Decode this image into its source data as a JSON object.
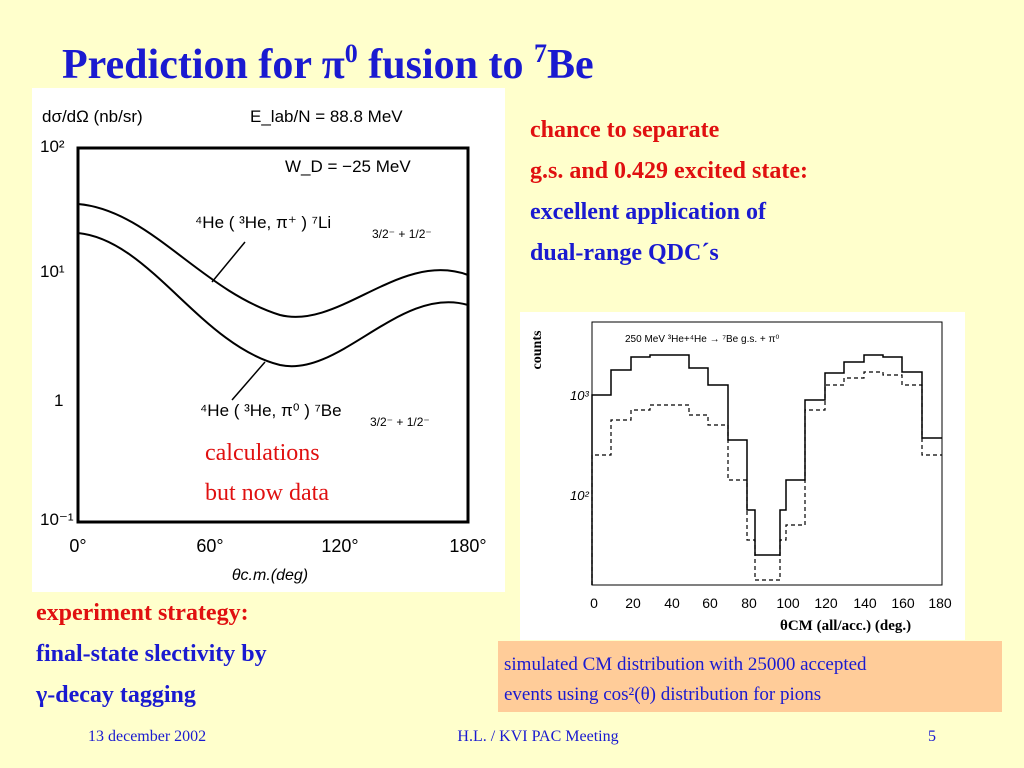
{
  "title": {
    "text": "Prediction for π",
    "sup0": "0",
    "mid": " fusion to ",
    "sup7": "7",
    "end": "Be"
  },
  "left_plot": {
    "ylabel": "dσ/dΩ  (nb/sr)",
    "energy": "E_lab/N = 88.8 MeV",
    "wd": "W_D = −25  MeV",
    "yticks": [
      "10²",
      "10¹",
      "1",
      "10⁻¹"
    ],
    "xticks": [
      "0°",
      "60°",
      "120°",
      "180°"
    ],
    "xlabel": "θc.m.(deg)",
    "curve_upper": "⁴He ( ³He, π⁺ ) ⁷Li",
    "curve_upper_sub": "3/2⁻ + 1/2⁻",
    "curve_lower": "⁴He ( ³He, π⁰ ) ⁷Be",
    "curve_lower_sub": "3/2⁻ + 1/2⁻"
  },
  "overlay": [
    "calculations",
    "but now data"
  ],
  "right_text": {
    "red": [
      "chance to separate",
      "g.s. and 0.429 excited state:"
    ],
    "blue": [
      "excellent application of",
      "dual-range QDC´s"
    ]
  },
  "right_plot": {
    "ylabel": "counts",
    "legend": "250 MeV ³He+⁴He  →  ⁷Be g.s. + π⁰",
    "yticks": [
      "10³",
      "10²"
    ],
    "xticks": [
      "0",
      "20",
      "40",
      "60",
      "80",
      "100",
      "120",
      "140",
      "160",
      "180"
    ],
    "xlabel": "θCM (all/acc.) (deg.)"
  },
  "strategy": {
    "red": "experiment strategy:",
    "blue": [
      "final-state slectivity by",
      "γ-decay tagging"
    ]
  },
  "note": [
    "simulated CM distribution with 25000 accepted",
    "events using cos²(θ) distribution for pions"
  ],
  "footer": {
    "date": "13 december 2002",
    "meeting": "H.L. / KVI PAC  Meeting",
    "page": "5"
  }
}
